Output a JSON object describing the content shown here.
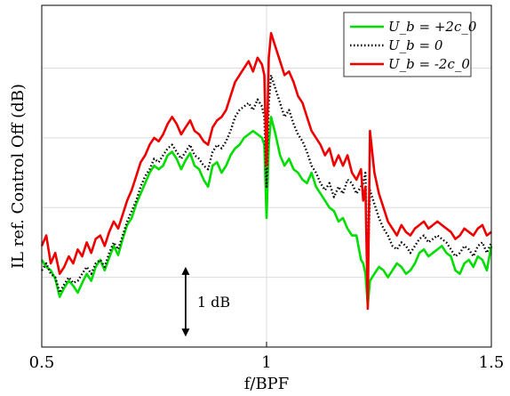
{
  "chart_data": {
    "type": "line",
    "xlabel": "f/BPF",
    "ylabel": "IL ref. Control Off (dB)",
    "xlim": [
      0.5,
      1.5
    ],
    "ylim": [
      0,
      4.9
    ],
    "xticks": [
      0.5,
      1,
      1.5
    ],
    "xtick_labels": [
      "0.5",
      "1",
      "1.5"
    ],
    "grid": true,
    "legend_position": "top-right",
    "annotation": {
      "label": "1 dB",
      "x": 0.82,
      "y_from": 0.15,
      "y_to": 1.15
    },
    "series": [
      {
        "name": "U_b = +2c_0",
        "legend_label": "U_b = +2c_0",
        "color": "#00dd00",
        "dash": "solid",
        "x": [
          0.5,
          0.51,
          0.52,
          0.53,
          0.54,
          0.55,
          0.56,
          0.57,
          0.58,
          0.59,
          0.6,
          0.61,
          0.62,
          0.63,
          0.64,
          0.65,
          0.66,
          0.67,
          0.68,
          0.69,
          0.7,
          0.71,
          0.72,
          0.73,
          0.74,
          0.75,
          0.76,
          0.77,
          0.78,
          0.79,
          0.8,
          0.81,
          0.82,
          0.83,
          0.84,
          0.85,
          0.86,
          0.87,
          0.88,
          0.89,
          0.9,
          0.91,
          0.92,
          0.93,
          0.94,
          0.95,
          0.96,
          0.97,
          0.98,
          0.99,
          0.995,
          1.0,
          1.005,
          1.01,
          1.02,
          1.03,
          1.04,
          1.05,
          1.06,
          1.07,
          1.08,
          1.09,
          1.1,
          1.11,
          1.12,
          1.13,
          1.14,
          1.15,
          1.16,
          1.17,
          1.18,
          1.19,
          1.2,
          1.21,
          1.215,
          1.22,
          1.225,
          1.23,
          1.24,
          1.25,
          1.26,
          1.27,
          1.28,
          1.29,
          1.3,
          1.31,
          1.32,
          1.33,
          1.34,
          1.35,
          1.36,
          1.37,
          1.38,
          1.39,
          1.4,
          1.41,
          1.42,
          1.43,
          1.44,
          1.45,
          1.46,
          1.47,
          1.48,
          1.49,
          1.5
        ],
        "y": [
          1.25,
          1.15,
          1.1,
          0.98,
          0.72,
          0.85,
          0.95,
          0.88,
          0.78,
          0.92,
          1.05,
          0.95,
          1.15,
          1.25,
          1.1,
          1.28,
          1.45,
          1.32,
          1.55,
          1.75,
          1.85,
          2.05,
          2.2,
          2.35,
          2.5,
          2.6,
          2.55,
          2.6,
          2.75,
          2.8,
          2.7,
          2.55,
          2.68,
          2.78,
          2.6,
          2.55,
          2.4,
          2.3,
          2.6,
          2.65,
          2.5,
          2.6,
          2.75,
          2.85,
          2.9,
          3.0,
          3.05,
          3.1,
          3.05,
          3.0,
          2.9,
          1.85,
          2.9,
          3.3,
          3.05,
          2.75,
          2.6,
          2.7,
          2.55,
          2.5,
          2.4,
          2.35,
          2.5,
          2.3,
          2.2,
          2.1,
          2.0,
          1.95,
          1.8,
          1.85,
          1.7,
          1.6,
          1.6,
          1.25,
          1.2,
          1.05,
          0.6,
          0.95,
          1.05,
          1.15,
          1.1,
          1.0,
          1.1,
          1.2,
          1.15,
          1.05,
          1.1,
          1.2,
          1.35,
          1.4,
          1.3,
          1.35,
          1.4,
          1.45,
          1.35,
          1.3,
          1.1,
          1.05,
          1.2,
          1.25,
          1.15,
          1.3,
          1.25,
          1.1,
          1.45
        ]
      },
      {
        "name": "U_b = 0",
        "legend_label": "U_b = 0",
        "color": "#000000",
        "dash": "dotted",
        "x": [
          0.5,
          0.51,
          0.52,
          0.53,
          0.54,
          0.55,
          0.56,
          0.57,
          0.58,
          0.59,
          0.6,
          0.61,
          0.62,
          0.63,
          0.64,
          0.65,
          0.66,
          0.67,
          0.68,
          0.69,
          0.7,
          0.71,
          0.72,
          0.73,
          0.74,
          0.75,
          0.76,
          0.77,
          0.78,
          0.79,
          0.8,
          0.81,
          0.82,
          0.83,
          0.84,
          0.85,
          0.86,
          0.87,
          0.88,
          0.89,
          0.9,
          0.91,
          0.92,
          0.93,
          0.94,
          0.95,
          0.96,
          0.97,
          0.98,
          0.99,
          0.995,
          1.0,
          1.005,
          1.01,
          1.02,
          1.03,
          1.04,
          1.05,
          1.06,
          1.07,
          1.08,
          1.09,
          1.1,
          1.11,
          1.12,
          1.13,
          1.14,
          1.15,
          1.16,
          1.17,
          1.18,
          1.19,
          1.2,
          1.21,
          1.215,
          1.22,
          1.225,
          1.23,
          1.24,
          1.25,
          1.26,
          1.27,
          1.28,
          1.29,
          1.3,
          1.31,
          1.32,
          1.33,
          1.34,
          1.35,
          1.36,
          1.37,
          1.38,
          1.39,
          1.4,
          1.41,
          1.42,
          1.43,
          1.44,
          1.45,
          1.46,
          1.47,
          1.48,
          1.49,
          1.5
        ],
        "y": [
          1.1,
          1.2,
          1.05,
          1.0,
          0.78,
          0.9,
          1.0,
          0.92,
          0.95,
          1.05,
          1.15,
          1.05,
          1.2,
          1.25,
          1.15,
          1.35,
          1.5,
          1.4,
          1.6,
          1.8,
          1.95,
          2.1,
          2.3,
          2.45,
          2.55,
          2.7,
          2.65,
          2.75,
          2.85,
          2.9,
          2.8,
          2.7,
          2.8,
          2.9,
          2.75,
          2.7,
          2.6,
          2.55,
          2.8,
          2.9,
          2.85,
          2.95,
          3.1,
          3.3,
          3.4,
          3.45,
          3.5,
          3.4,
          3.55,
          3.45,
          3.3,
          2.3,
          3.5,
          3.9,
          3.7,
          3.5,
          3.3,
          3.4,
          3.2,
          3.05,
          2.95,
          2.8,
          2.6,
          2.5,
          2.35,
          2.25,
          2.35,
          2.15,
          2.3,
          2.2,
          2.4,
          2.35,
          2.2,
          2.3,
          2.35,
          2.5,
          1.1,
          2.25,
          2.05,
          1.85,
          1.7,
          1.6,
          1.45,
          1.4,
          1.5,
          1.45,
          1.35,
          1.45,
          1.55,
          1.6,
          1.5,
          1.55,
          1.6,
          1.55,
          1.5,
          1.4,
          1.3,
          1.35,
          1.45,
          1.4,
          1.3,
          1.45,
          1.5,
          1.35,
          1.5
        ]
      },
      {
        "name": "U_b = -2c_0",
        "legend_label": "U_b = -2c_0",
        "color": "#ee0000",
        "dash": "solid",
        "x": [
          0.5,
          0.51,
          0.52,
          0.53,
          0.54,
          0.55,
          0.56,
          0.57,
          0.58,
          0.59,
          0.6,
          0.61,
          0.62,
          0.63,
          0.64,
          0.65,
          0.66,
          0.67,
          0.68,
          0.69,
          0.7,
          0.71,
          0.72,
          0.73,
          0.74,
          0.75,
          0.76,
          0.77,
          0.78,
          0.79,
          0.8,
          0.81,
          0.82,
          0.83,
          0.84,
          0.85,
          0.86,
          0.87,
          0.88,
          0.89,
          0.9,
          0.91,
          0.92,
          0.93,
          0.94,
          0.95,
          0.96,
          0.97,
          0.98,
          0.99,
          0.995,
          1.0,
          1.005,
          1.01,
          1.02,
          1.03,
          1.04,
          1.05,
          1.06,
          1.07,
          1.08,
          1.09,
          1.1,
          1.11,
          1.12,
          1.13,
          1.14,
          1.15,
          1.16,
          1.17,
          1.18,
          1.19,
          1.2,
          1.21,
          1.215,
          1.22,
          1.225,
          1.23,
          1.24,
          1.25,
          1.26,
          1.27,
          1.28,
          1.29,
          1.3,
          1.31,
          1.32,
          1.33,
          1.34,
          1.35,
          1.36,
          1.37,
          1.38,
          1.39,
          1.4,
          1.41,
          1.42,
          1.43,
          1.44,
          1.45,
          1.46,
          1.47,
          1.48,
          1.49,
          1.5
        ],
        "y": [
          1.45,
          1.6,
          1.2,
          1.35,
          1.05,
          1.15,
          1.3,
          1.2,
          1.4,
          1.3,
          1.5,
          1.35,
          1.55,
          1.6,
          1.45,
          1.65,
          1.8,
          1.7,
          1.9,
          2.1,
          2.25,
          2.45,
          2.65,
          2.75,
          2.9,
          3.0,
          2.95,
          3.05,
          3.2,
          3.3,
          3.2,
          3.05,
          3.15,
          3.25,
          3.1,
          3.05,
          2.95,
          2.9,
          3.15,
          3.25,
          3.3,
          3.4,
          3.6,
          3.8,
          3.9,
          4.0,
          4.1,
          3.95,
          4.15,
          4.05,
          3.9,
          2.6,
          4.15,
          4.5,
          4.3,
          4.1,
          3.9,
          3.95,
          3.8,
          3.6,
          3.5,
          3.3,
          3.1,
          3.0,
          2.9,
          2.75,
          2.85,
          2.6,
          2.75,
          2.6,
          2.75,
          2.5,
          2.4,
          2.55,
          2.1,
          2.3,
          0.55,
          3.1,
          2.5,
          2.2,
          2.0,
          1.8,
          1.7,
          1.6,
          1.75,
          1.65,
          1.6,
          1.7,
          1.75,
          1.8,
          1.7,
          1.75,
          1.8,
          1.75,
          1.7,
          1.65,
          1.55,
          1.6,
          1.7,
          1.65,
          1.6,
          1.7,
          1.75,
          1.6,
          1.65
        ]
      }
    ]
  }
}
